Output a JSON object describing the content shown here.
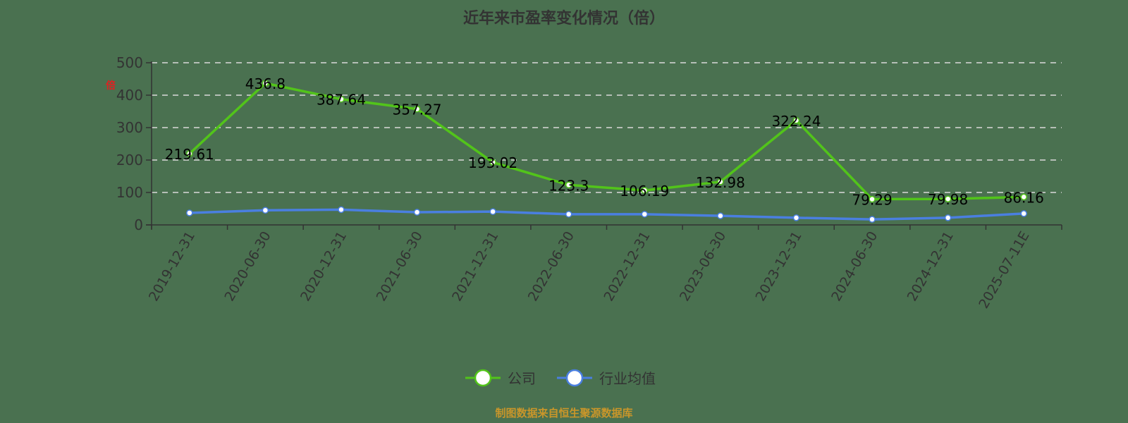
{
  "chart_data": {
    "type": "line",
    "title": "近年来市盈率变化情况（倍）",
    "xlabel": "",
    "ylabel": "倍",
    "ylim": [
      0,
      500
    ],
    "yticks": [
      0,
      100,
      200,
      300,
      400,
      500
    ],
    "grid": "horizontal dashed",
    "legend_position": "bottom-center",
    "categories": [
      "2019-12-31",
      "2020-06-30",
      "2020-12-31",
      "2021-06-30",
      "2021-12-31",
      "2022-06-30",
      "2022-12-31",
      "2023-06-30",
      "2023-12-31",
      "2024-06-30",
      "2024-12-31",
      "2025-07-11E"
    ],
    "series": [
      {
        "name": "公司",
        "color": "#52c41a",
        "values": [
          219.61,
          436.8,
          387.64,
          357.27,
          193.02,
          123.3,
          106.19,
          132.98,
          322.24,
          79.29,
          79.98,
          86.16
        ],
        "labels": [
          "219.61",
          "436.8",
          "387.64",
          "357.27",
          "193.02",
          "123.3",
          "106.19",
          "132.98",
          "322.24",
          "79.29",
          "79.98",
          "86.16"
        ]
      },
      {
        "name": "行业均值",
        "color": "#4a7fe0",
        "values": [
          37,
          45,
          47,
          39,
          41,
          33,
          33,
          28,
          22,
          17,
          22,
          35
        ]
      }
    ]
  },
  "texts": {
    "title": "近年来市盈率变化情况（倍）",
    "unit": "倍",
    "source": "制图数据来自恒生聚源数据库",
    "legend": [
      "公司",
      "行业均值"
    ]
  }
}
